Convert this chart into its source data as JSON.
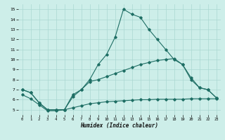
{
  "xlabel": "Humidex (Indice chaleur)",
  "bg_color": "#cdeee9",
  "line_color": "#1e6e64",
  "grid_color": "#aad8d2",
  "xlim": [
    -0.5,
    23.5
  ],
  "ylim": [
    4.5,
    15.5
  ],
  "xtick_vals": [
    0,
    1,
    2,
    3,
    4,
    5,
    6,
    7,
    8,
    9,
    10,
    11,
    12,
    13,
    14,
    15,
    16,
    17,
    18,
    19,
    20,
    21,
    22,
    23
  ],
  "ytick_vals": [
    5,
    6,
    7,
    8,
    9,
    10,
    11,
    12,
    13,
    14,
    15
  ],
  "line1_x": [
    0,
    1,
    2,
    3,
    4,
    5,
    6,
    7,
    8,
    9,
    10,
    11,
    12,
    13,
    14,
    15,
    16,
    17,
    18,
    19,
    20,
    21,
    22,
    23
  ],
  "line1_y": [
    7.0,
    6.7,
    5.7,
    5.0,
    5.0,
    5.0,
    6.3,
    7.0,
    8.0,
    9.5,
    10.5,
    12.2,
    15.0,
    14.5,
    14.2,
    13.0,
    12.0,
    11.0,
    10.0,
    9.5,
    8.0,
    7.2,
    7.0,
    6.2
  ],
  "line2_x": [
    0,
    1,
    2,
    3,
    4,
    5,
    6,
    7,
    8,
    9,
    10,
    11,
    12,
    13,
    14,
    15,
    16,
    17,
    18,
    19,
    20,
    21,
    22,
    23
  ],
  "line2_y": [
    7.0,
    6.7,
    5.7,
    5.0,
    5.0,
    5.0,
    6.5,
    7.0,
    7.8,
    8.0,
    8.3,
    8.6,
    8.9,
    9.2,
    9.5,
    9.7,
    9.9,
    10.0,
    10.1,
    9.5,
    8.2,
    7.2,
    7.0,
    6.2
  ],
  "line3_x": [
    0,
    1,
    2,
    3,
    4,
    5,
    6,
    7,
    8,
    9,
    10,
    11,
    12,
    13,
    14,
    15,
    16,
    17,
    18,
    19,
    20,
    21,
    22,
    23
  ],
  "line3_y": [
    6.5,
    6.1,
    5.5,
    4.9,
    4.9,
    5.0,
    5.2,
    5.4,
    5.6,
    5.7,
    5.8,
    5.85,
    5.9,
    5.95,
    6.0,
    6.0,
    6.05,
    6.05,
    6.05,
    6.05,
    6.1,
    6.1,
    6.1,
    6.1
  ]
}
